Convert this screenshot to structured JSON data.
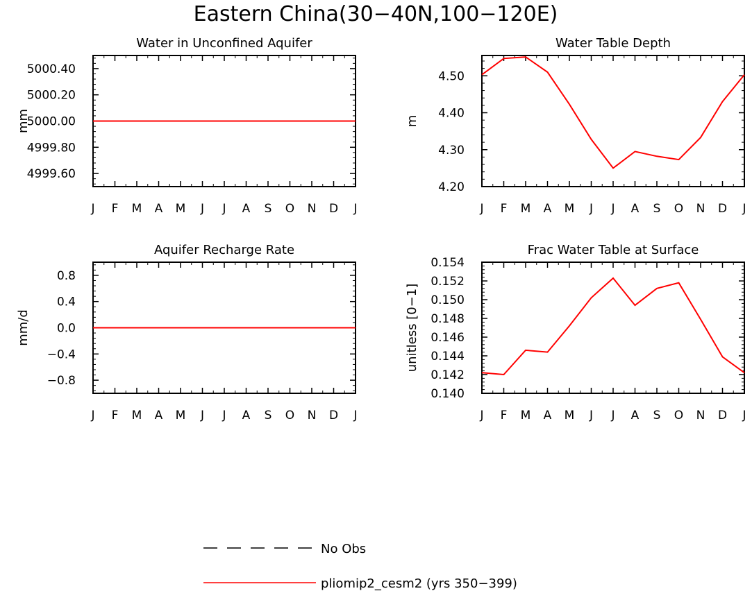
{
  "figure_title": "Eastern China(30−40N,100−120E)",
  "legend": [
    {
      "label": "No Obs",
      "color": "#000000",
      "dashed": true
    },
    {
      "label": "pliomip2_cesm2 (yrs 350−399)",
      "color": "#ff0000",
      "dashed": false
    }
  ],
  "chart_data": [
    {
      "type": "line",
      "title": "Water in Unconfined Aquifer",
      "ylabel": "mm",
      "xlabel": "",
      "categories": [
        "J",
        "F",
        "M",
        "A",
        "M",
        "J",
        "J",
        "A",
        "S",
        "O",
        "N",
        "D",
        "J"
      ],
      "ylim": [
        4999.5,
        5000.5
      ],
      "yticks": [
        4999.6,
        4999.8,
        5000.0,
        5000.2,
        5000.4
      ],
      "ytick_labels": [
        "4999.60",
        "4999.80",
        "5000.00",
        "5000.20",
        "5000.40"
      ],
      "series": [
        {
          "name": "pliomip2_cesm2 (yrs 350−399)",
          "color": "#ff0000",
          "values": [
            5000,
            5000,
            5000,
            5000,
            5000,
            5000,
            5000,
            5000,
            5000,
            5000,
            5000,
            5000,
            5000
          ]
        }
      ]
    },
    {
      "type": "line",
      "title": "Water Table Depth",
      "ylabel": "m",
      "xlabel": "",
      "categories": [
        "J",
        "F",
        "M",
        "A",
        "M",
        "J",
        "J",
        "A",
        "S",
        "O",
        "N",
        "D",
        "J"
      ],
      "ylim": [
        4.2,
        4.555
      ],
      "yticks": [
        4.2,
        4.3,
        4.4,
        4.5
      ],
      "ytick_labels": [
        "4.20",
        "4.30",
        "4.40",
        "4.50"
      ],
      "series": [
        {
          "name": "pliomip2_cesm2 (yrs 350−399)",
          "color": "#ff0000",
          "values": [
            4.503,
            4.547,
            4.551,
            4.51,
            4.423,
            4.328,
            4.25,
            4.295,
            4.282,
            4.273,
            4.333,
            4.43,
            4.503
          ]
        }
      ]
    },
    {
      "type": "line",
      "title": "Aquifer Recharge Rate",
      "ylabel": "mm/d",
      "xlabel": "",
      "categories": [
        "J",
        "F",
        "M",
        "A",
        "M",
        "J",
        "J",
        "A",
        "S",
        "O",
        "N",
        "D",
        "J"
      ],
      "ylim": [
        -1.0,
        1.0
      ],
      "yticks": [
        -0.8,
        -0.4,
        0.0,
        0.4,
        0.8
      ],
      "ytick_labels": [
        "−0.8",
        "−0.4",
        "0.0",
        "0.4",
        "0.8"
      ],
      "series": [
        {
          "name": "pliomip2_cesm2 (yrs 350−399)",
          "color": "#ff0000",
          "values": [
            0,
            0,
            0,
            0,
            0,
            0,
            0,
            0,
            0,
            0,
            0,
            0,
            0
          ]
        }
      ]
    },
    {
      "type": "line",
      "title": "Frac Water Table at Surface",
      "ylabel": "unitless [0−1]",
      "xlabel": "",
      "categories": [
        "J",
        "F",
        "M",
        "A",
        "M",
        "J",
        "J",
        "A",
        "S",
        "O",
        "N",
        "D",
        "J"
      ],
      "ylim": [
        0.14,
        0.154
      ],
      "yticks": [
        0.14,
        0.142,
        0.144,
        0.146,
        0.148,
        0.15,
        0.152,
        0.154
      ],
      "ytick_labels": [
        "0.140",
        "0.142",
        "0.144",
        "0.146",
        "0.148",
        "0.150",
        "0.152",
        "0.154"
      ],
      "series": [
        {
          "name": "pliomip2_cesm2 (yrs 350−399)",
          "color": "#ff0000",
          "values": [
            0.1422,
            0.142,
            0.1446,
            0.1444,
            0.1472,
            0.1502,
            0.1523,
            0.1494,
            0.1512,
            0.1518,
            0.1479,
            0.1439,
            0.1422
          ]
        }
      ]
    }
  ]
}
